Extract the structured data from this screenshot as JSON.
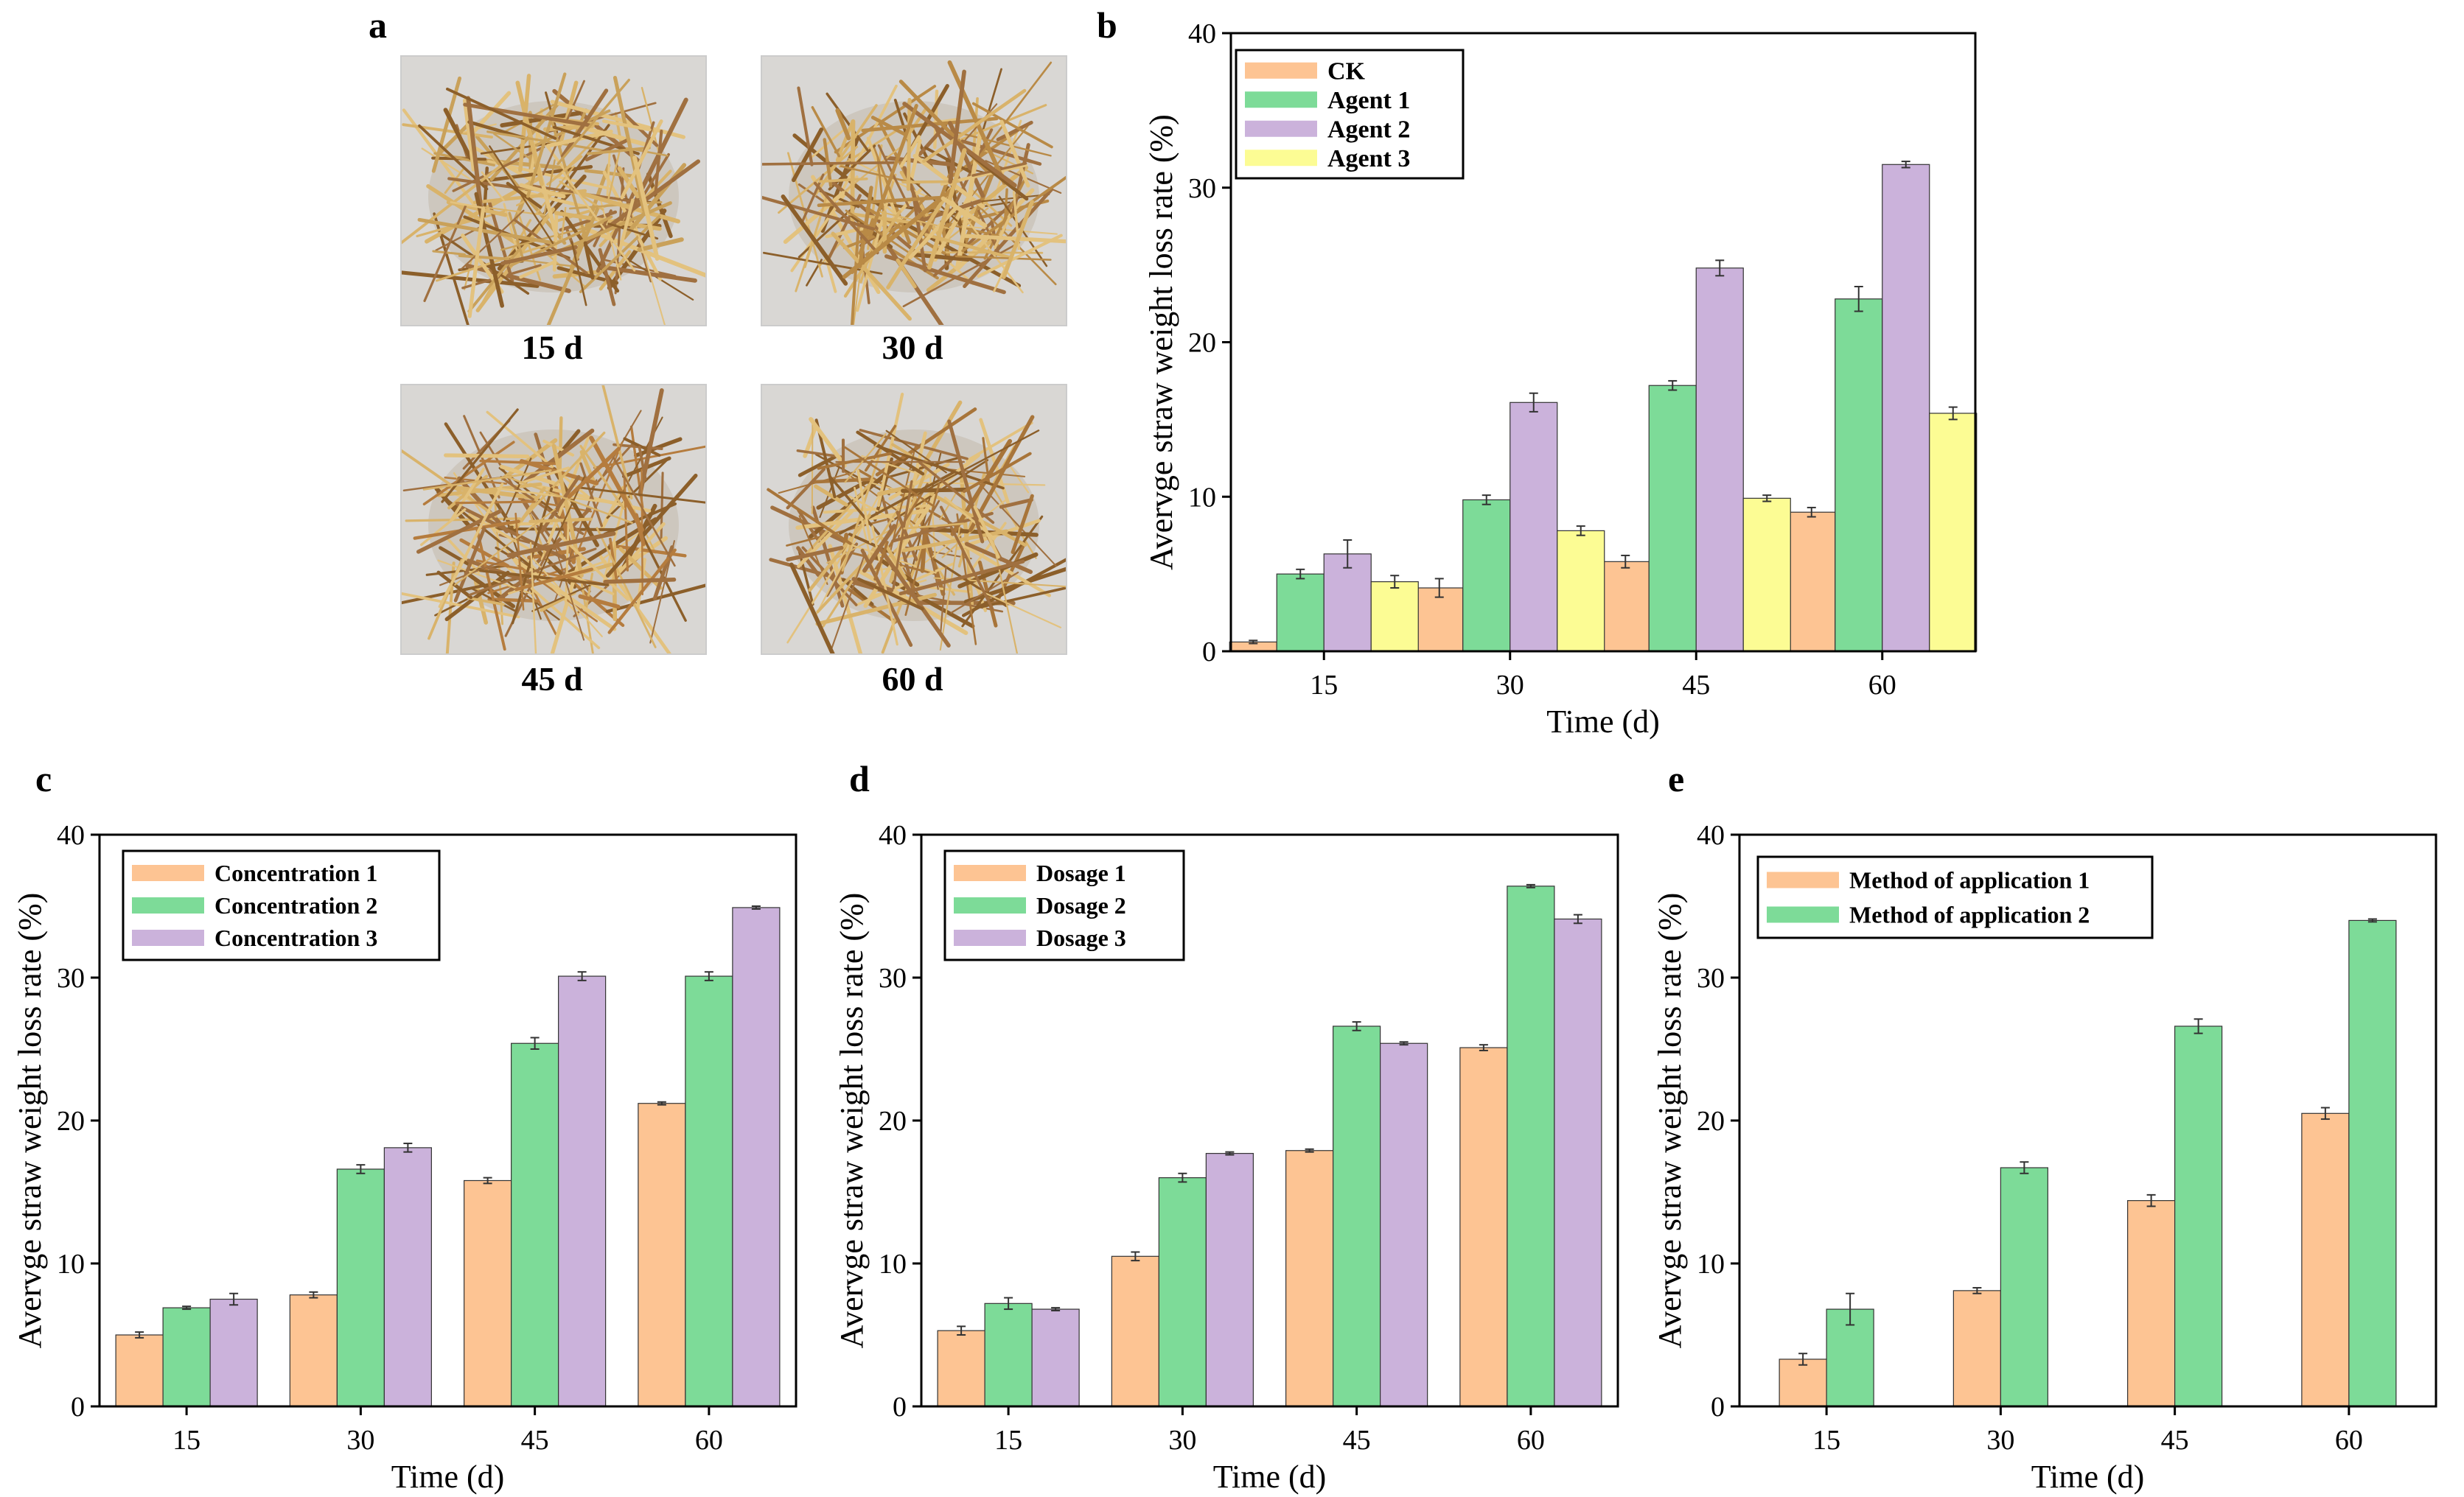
{
  "panel_a": {
    "letter": "a",
    "photos": [
      {
        "label": "15 d",
        "tone": "#c9a15a"
      },
      {
        "label": "30 d",
        "tone": "#b98a46"
      },
      {
        "label": "45 d",
        "tone": "#b57c3e"
      },
      {
        "label": "60 d",
        "tone": "#a8753a"
      }
    ]
  },
  "colors": {
    "s1": "#fdc493",
    "s2": "#7ddb98",
    "s3": "#cbb2db",
    "s4": "#fcfc94",
    "edge": "#333333"
  },
  "chart_data": [
    {
      "id": "b",
      "letter": "b",
      "type": "bar",
      "categories": [
        "15",
        "30",
        "45",
        "60"
      ],
      "series": [
        {
          "name": "CK",
          "values": [
            0.6,
            4.1,
            5.8,
            9.0
          ],
          "errors": [
            0.1,
            0.6,
            0.4,
            0.3
          ]
        },
        {
          "name": "Agent 1",
          "values": [
            5.0,
            9.8,
            17.2,
            22.8
          ],
          "errors": [
            0.3,
            0.3,
            0.3,
            0.8
          ]
        },
        {
          "name": "Agent 2",
          "values": [
            6.3,
            16.1,
            24.8,
            31.5
          ],
          "errors": [
            0.9,
            0.6,
            0.5,
            0.2
          ]
        },
        {
          "name": "Agent 3",
          "values": [
            4.5,
            7.8,
            9.9,
            15.4
          ],
          "errors": [
            0.4,
            0.3,
            0.2,
            0.4
          ]
        }
      ],
      "xlabel": "Time (d)",
      "ylabel": "Avervge straw weight loss rate (%)",
      "ylim": [
        0,
        40
      ],
      "yticks": [
        "0",
        "10",
        "20",
        "30",
        "40"
      ],
      "legend_position": "top-left"
    },
    {
      "id": "c",
      "letter": "c",
      "type": "bar",
      "categories": [
        "15",
        "30",
        "45",
        "60"
      ],
      "series": [
        {
          "name": "Concentration 1",
          "values": [
            5.0,
            7.8,
            15.8,
            21.2
          ],
          "errors": [
            0.2,
            0.2,
            0.2,
            0.1
          ]
        },
        {
          "name": "Concentration 2",
          "values": [
            6.9,
            16.6,
            25.4,
            30.1
          ],
          "errors": [
            0.1,
            0.3,
            0.4,
            0.3
          ]
        },
        {
          "name": "Concentration 3",
          "values": [
            7.5,
            18.1,
            30.1,
            34.9
          ],
          "errors": [
            0.4,
            0.3,
            0.3,
            0.1
          ]
        }
      ],
      "xlabel": "Time (d)",
      "ylabel": "Avervge straw weight loss rate (%)",
      "ylim": [
        0,
        40
      ],
      "yticks": [
        "0",
        "10",
        "20",
        "30",
        "40"
      ],
      "legend_position": "top-left"
    },
    {
      "id": "d",
      "letter": "d",
      "type": "bar",
      "categories": [
        "15",
        "30",
        "45",
        "60"
      ],
      "series": [
        {
          "name": "Dosage 1",
          "values": [
            5.3,
            10.5,
            17.9,
            25.1
          ],
          "errors": [
            0.3,
            0.3,
            0.1,
            0.2
          ]
        },
        {
          "name": "Dosage 2",
          "values": [
            7.2,
            16.0,
            26.6,
            36.4
          ],
          "errors": [
            0.4,
            0.3,
            0.3,
            0.1
          ]
        },
        {
          "name": "Dosage 3",
          "values": [
            6.8,
            17.7,
            25.4,
            34.1
          ],
          "errors": [
            0.1,
            0.1,
            0.1,
            0.3
          ]
        }
      ],
      "xlabel": "Time (d)",
      "ylabel": "Avervge straw weight loss rate (%)",
      "ylim": [
        0,
        40
      ],
      "yticks": [
        "0",
        "10",
        "20",
        "30",
        "40"
      ],
      "legend_position": "top-left"
    },
    {
      "id": "e",
      "letter": "e",
      "type": "bar",
      "categories": [
        "15",
        "30",
        "45",
        "60"
      ],
      "series": [
        {
          "name": "Method of application 1",
          "values": [
            3.3,
            8.1,
            14.4,
            20.5
          ],
          "errors": [
            0.4,
            0.2,
            0.4,
            0.4
          ]
        },
        {
          "name": "Method of application 2",
          "values": [
            6.8,
            16.7,
            26.6,
            34.0
          ],
          "errors": [
            1.1,
            0.4,
            0.5,
            0.1
          ]
        }
      ],
      "xlabel": "Time (d)",
      "ylabel": "Avervge straw weight loss rate (%)",
      "ylim": [
        0,
        40
      ],
      "yticks": [
        "0",
        "10",
        "20",
        "30",
        "40"
      ],
      "legend_position": "top-left"
    }
  ]
}
